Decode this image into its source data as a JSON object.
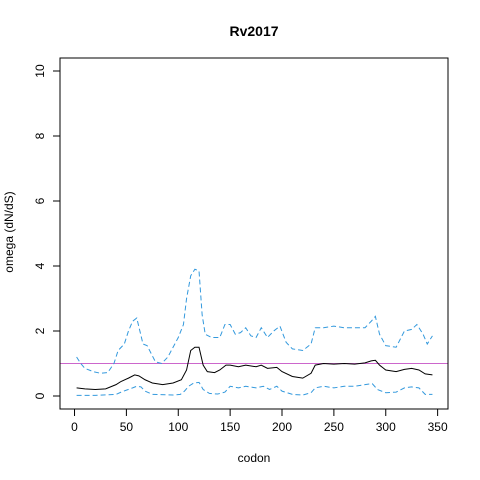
{
  "chart_data": {
    "type": "line",
    "title": "Rv2017",
    "xlabel": "codon",
    "ylabel": "omega (dN/dS)",
    "xlim": [
      -14,
      360
    ],
    "ylim": [
      -0.4,
      10.4
    ],
    "x_ticks": [
      0,
      50,
      100,
      150,
      200,
      250,
      300,
      350
    ],
    "y_ticks": [
      0,
      2,
      4,
      6,
      8,
      10
    ],
    "reference_line": {
      "y": 1,
      "color": "#cc66cc"
    },
    "series": [
      {
        "style": "solid",
        "color": "#000000",
        "points": [
          [
            2,
            0.25
          ],
          [
            10,
            0.22
          ],
          [
            20,
            0.2
          ],
          [
            30,
            0.22
          ],
          [
            40,
            0.35
          ],
          [
            45,
            0.45
          ],
          [
            52,
            0.55
          ],
          [
            58,
            0.65
          ],
          [
            62,
            0.62
          ],
          [
            68,
            0.5
          ],
          [
            75,
            0.4
          ],
          [
            85,
            0.35
          ],
          [
            95,
            0.4
          ],
          [
            103,
            0.5
          ],
          [
            108,
            0.8
          ],
          [
            112,
            1.4
          ],
          [
            116,
            1.5
          ],
          [
            120,
            1.5
          ],
          [
            124,
            0.95
          ],
          [
            128,
            0.75
          ],
          [
            135,
            0.72
          ],
          [
            140,
            0.8
          ],
          [
            146,
            0.95
          ],
          [
            150,
            0.95
          ],
          [
            158,
            0.9
          ],
          [
            165,
            0.95
          ],
          [
            175,
            0.9
          ],
          [
            180,
            0.95
          ],
          [
            186,
            0.85
          ],
          [
            195,
            0.88
          ],
          [
            200,
            0.75
          ],
          [
            210,
            0.6
          ],
          [
            220,
            0.55
          ],
          [
            228,
            0.7
          ],
          [
            232,
            0.95
          ],
          [
            240,
            1.0
          ],
          [
            250,
            0.98
          ],
          [
            260,
            1.0
          ],
          [
            270,
            0.98
          ],
          [
            280,
            1.02
          ],
          [
            286,
            1.08
          ],
          [
            290,
            1.1
          ],
          [
            294,
            0.95
          ],
          [
            300,
            0.8
          ],
          [
            310,
            0.75
          ],
          [
            318,
            0.82
          ],
          [
            325,
            0.85
          ],
          [
            332,
            0.8
          ],
          [
            338,
            0.68
          ],
          [
            345,
            0.65
          ]
        ]
      },
      {
        "style": "dashed",
        "color": "#3399dd",
        "points": [
          [
            2,
            1.2
          ],
          [
            6,
            1.0
          ],
          [
            10,
            0.85
          ],
          [
            18,
            0.75
          ],
          [
            25,
            0.7
          ],
          [
            32,
            0.72
          ],
          [
            38,
            1.0
          ],
          [
            42,
            1.4
          ],
          [
            48,
            1.6
          ],
          [
            52,
            2.0
          ],
          [
            56,
            2.3
          ],
          [
            60,
            2.4
          ],
          [
            63,
            2.0
          ],
          [
            66,
            1.6
          ],
          [
            70,
            1.55
          ],
          [
            74,
            1.3
          ],
          [
            78,
            1.05
          ],
          [
            84,
            1.0
          ],
          [
            90,
            1.2
          ],
          [
            95,
            1.5
          ],
          [
            100,
            1.8
          ],
          [
            105,
            2.2
          ],
          [
            108,
            3.0
          ],
          [
            112,
            3.7
          ],
          [
            116,
            3.9
          ],
          [
            120,
            3.85
          ],
          [
            123,
            2.5
          ],
          [
            126,
            1.9
          ],
          [
            132,
            1.8
          ],
          [
            140,
            1.8
          ],
          [
            145,
            2.2
          ],
          [
            150,
            2.2
          ],
          [
            155,
            1.9
          ],
          [
            160,
            1.95
          ],
          [
            165,
            2.1
          ],
          [
            170,
            1.85
          ],
          [
            175,
            1.8
          ],
          [
            180,
            2.1
          ],
          [
            186,
            1.8
          ],
          [
            192,
            2.0
          ],
          [
            198,
            2.15
          ],
          [
            204,
            1.65
          ],
          [
            210,
            1.45
          ],
          [
            220,
            1.4
          ],
          [
            228,
            1.6
          ],
          [
            232,
            2.1
          ],
          [
            240,
            2.1
          ],
          [
            250,
            2.15
          ],
          [
            260,
            2.1
          ],
          [
            270,
            2.1
          ],
          [
            280,
            2.1
          ],
          [
            286,
            2.3
          ],
          [
            290,
            2.45
          ],
          [
            294,
            1.9
          ],
          [
            300,
            1.55
          ],
          [
            310,
            1.5
          ],
          [
            318,
            2.0
          ],
          [
            325,
            2.05
          ],
          [
            330,
            2.2
          ],
          [
            336,
            1.9
          ],
          [
            340,
            1.6
          ],
          [
            345,
            1.85
          ]
        ]
      },
      {
        "style": "dashed",
        "color": "#3399dd",
        "points": [
          [
            2,
            0.02
          ],
          [
            20,
            0.02
          ],
          [
            40,
            0.05
          ],
          [
            45,
            0.12
          ],
          [
            50,
            0.18
          ],
          [
            56,
            0.25
          ],
          [
            60,
            0.3
          ],
          [
            64,
            0.28
          ],
          [
            68,
            0.15
          ],
          [
            75,
            0.05
          ],
          [
            95,
            0.03
          ],
          [
            102,
            0.05
          ],
          [
            106,
            0.15
          ],
          [
            110,
            0.3
          ],
          [
            115,
            0.4
          ],
          [
            120,
            0.42
          ],
          [
            124,
            0.2
          ],
          [
            130,
            0.08
          ],
          [
            138,
            0.06
          ],
          [
            145,
            0.12
          ],
          [
            150,
            0.3
          ],
          [
            158,
            0.25
          ],
          [
            165,
            0.3
          ],
          [
            175,
            0.25
          ],
          [
            182,
            0.3
          ],
          [
            188,
            0.2
          ],
          [
            195,
            0.3
          ],
          [
            200,
            0.15
          ],
          [
            210,
            0.05
          ],
          [
            220,
            0.03
          ],
          [
            228,
            0.1
          ],
          [
            232,
            0.25
          ],
          [
            240,
            0.3
          ],
          [
            250,
            0.25
          ],
          [
            260,
            0.3
          ],
          [
            270,
            0.3
          ],
          [
            280,
            0.35
          ],
          [
            287,
            0.38
          ],
          [
            292,
            0.2
          ],
          [
            300,
            0.1
          ],
          [
            310,
            0.12
          ],
          [
            318,
            0.25
          ],
          [
            325,
            0.28
          ],
          [
            332,
            0.25
          ],
          [
            338,
            0.05
          ],
          [
            345,
            0.05
          ]
        ]
      }
    ]
  }
}
